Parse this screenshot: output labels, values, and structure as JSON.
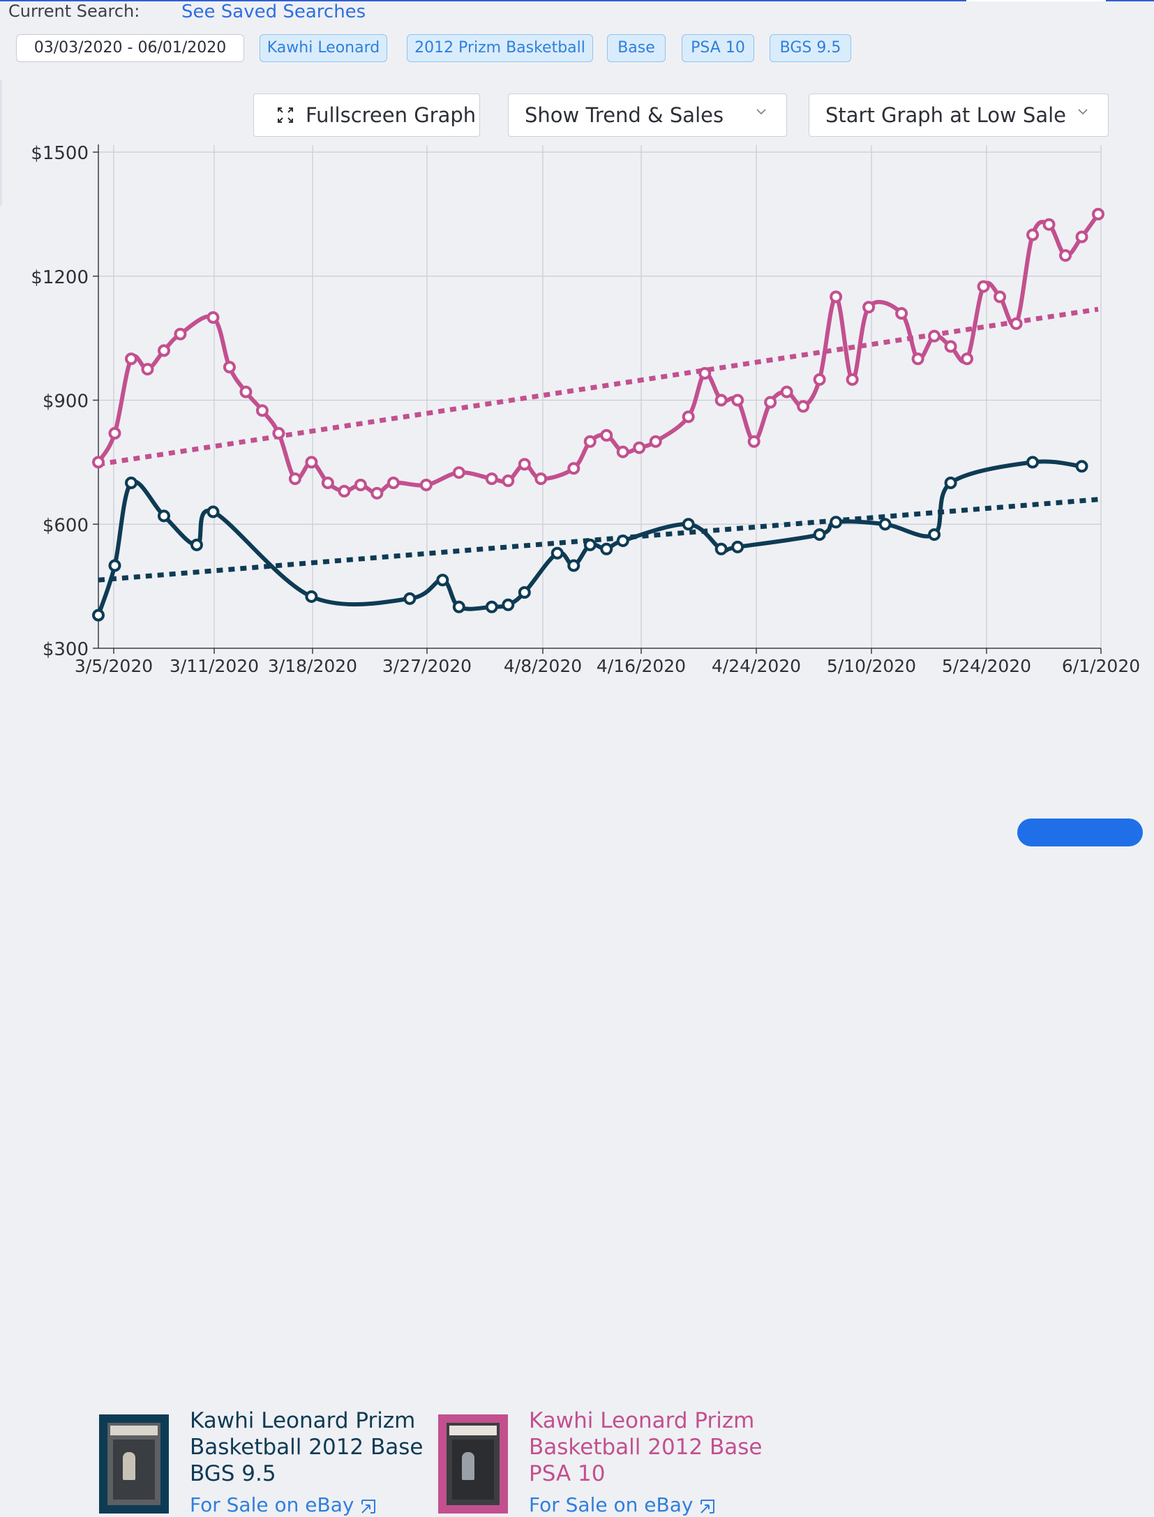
{
  "header": {
    "current_search_label": "Current Search:",
    "saved_searches_link": "See Saved Searches"
  },
  "chips": [
    {
      "label": "03/03/2020 - 06/01/2020",
      "kind": "date"
    },
    {
      "label": "Kawhi Leonard",
      "kind": "filter"
    },
    {
      "label": "2012 Prizm Basketball",
      "kind": "filter"
    },
    {
      "label": "Base",
      "kind": "filter"
    },
    {
      "label": "PSA 10",
      "kind": "filter"
    },
    {
      "label": "BGS 9.5",
      "kind": "filter"
    }
  ],
  "controls": {
    "fullscreen_label": "Fullscreen Graph",
    "trend_select_value": "Show Trend & Sales",
    "start_select_value": "Start Graph at Low Sale",
    "icons": [
      "fullscreen-icon",
      "chevron-down-icon",
      "chevron-down-icon"
    ]
  },
  "chart_data": {
    "type": "line",
    "title": "",
    "xlabel": "",
    "ylabel": "",
    "ylim": [
      300,
      1500
    ],
    "y_ticks": [
      300,
      600,
      900,
      1200,
      1500
    ],
    "y_tick_labels": [
      "$300",
      "$600",
      "$900",
      "$1200",
      "$1500"
    ],
    "x_range": [
      "2020-03-04",
      "2020-06-01"
    ],
    "x_ticks": [
      {
        "date": "2020-03-05",
        "label": "3/5/2020"
      },
      {
        "date": "2020-03-11",
        "label": "3/11/2020"
      },
      {
        "date": "2020-03-18",
        "label": "3/18/2020"
      },
      {
        "date": "2020-03-27",
        "label": "3/27/2020"
      },
      {
        "date": "2020-04-08",
        "label": "4/8/2020"
      },
      {
        "date": "2020-04-16",
        "label": "4/16/2020"
      },
      {
        "date": "2020-04-24",
        "label": "4/24/2020"
      },
      {
        "date": "2020-05-10",
        "label": "5/10/2020"
      },
      {
        "date": "2020-05-24",
        "label": "5/24/2020"
      },
      {
        "date": "2020-06-01",
        "label": "6/1/2020"
      }
    ],
    "grid": true,
    "legend_position": "bottom",
    "series": [
      {
        "name": "Kawhi Leonard Prizm Basketball 2012 Base PSA 10",
        "color": "#c2508f",
        "points": [
          [
            "2020-03-04",
            750
          ],
          [
            "2020-03-05",
            820
          ],
          [
            "2020-03-06",
            1000
          ],
          [
            "2020-03-07",
            975
          ],
          [
            "2020-03-08",
            1020
          ],
          [
            "2020-03-09",
            1060
          ],
          [
            "2020-03-11",
            1100
          ],
          [
            "2020-03-12",
            980
          ],
          [
            "2020-03-13",
            920
          ],
          [
            "2020-03-14",
            875
          ],
          [
            "2020-03-15",
            820
          ],
          [
            "2020-03-16",
            710
          ],
          [
            "2020-03-17",
            750
          ],
          [
            "2020-03-18",
            700
          ],
          [
            "2020-03-19",
            680
          ],
          [
            "2020-03-20",
            695
          ],
          [
            "2020-03-21",
            675
          ],
          [
            "2020-03-22",
            700
          ],
          [
            "2020-03-24",
            695
          ],
          [
            "2020-03-26",
            725
          ],
          [
            "2020-03-28",
            710
          ],
          [
            "2020-03-29",
            705
          ],
          [
            "2020-03-30",
            745
          ],
          [
            "2020-03-31",
            710
          ],
          [
            "2020-04-02",
            735
          ],
          [
            "2020-04-03",
            800
          ],
          [
            "2020-04-04",
            815
          ],
          [
            "2020-04-05",
            775
          ],
          [
            "2020-04-06",
            785
          ],
          [
            "2020-04-07",
            800
          ],
          [
            "2020-04-09",
            860
          ],
          [
            "2020-04-10",
            965
          ],
          [
            "2020-04-11",
            900
          ],
          [
            "2020-04-12",
            900
          ],
          [
            "2020-04-13",
            800
          ],
          [
            "2020-04-14",
            895
          ],
          [
            "2020-04-15",
            920
          ],
          [
            "2020-04-16",
            885
          ],
          [
            "2020-04-17",
            950
          ],
          [
            "2020-04-18",
            1150
          ],
          [
            "2020-04-19",
            950
          ],
          [
            "2020-04-20",
            1125
          ],
          [
            "2020-04-22",
            1110
          ],
          [
            "2020-04-23",
            1000
          ],
          [
            "2020-04-24",
            1055
          ],
          [
            "2020-04-25",
            1030
          ],
          [
            "2020-04-26",
            1000
          ],
          [
            "2020-04-27",
            1175
          ],
          [
            "2020-04-28",
            1150
          ],
          [
            "2020-04-29",
            1085
          ],
          [
            "2020-04-30",
            1300
          ],
          [
            "2020-05-01",
            1325
          ],
          [
            "2020-05-02",
            1250
          ],
          [
            "2020-05-03",
            1295
          ],
          [
            "2020-05-04",
            1350
          ]
        ],
        "trend": [
          [
            "2020-03-04",
            745
          ],
          [
            "2020-05-04",
            1120
          ]
        ]
      },
      {
        "name": "Kawhi Leonard Prizm Basketball 2012 Base BGS 9.5",
        "color": "#0e3b54",
        "points": [
          [
            "2020-03-04",
            380
          ],
          [
            "2020-03-05",
            500
          ],
          [
            "2020-03-06",
            700
          ],
          [
            "2020-03-08",
            620
          ],
          [
            "2020-03-10",
            550
          ],
          [
            "2020-03-11",
            630
          ],
          [
            "2020-03-17",
            425
          ],
          [
            "2020-03-23",
            420
          ],
          [
            "2020-03-25",
            465
          ],
          [
            "2020-03-26",
            400
          ],
          [
            "2020-03-28",
            400
          ],
          [
            "2020-03-29",
            405
          ],
          [
            "2020-03-30",
            435
          ],
          [
            "2020-04-01",
            530
          ],
          [
            "2020-04-02",
            500
          ],
          [
            "2020-04-03",
            550
          ],
          [
            "2020-04-04",
            540
          ],
          [
            "2020-04-05",
            560
          ],
          [
            "2020-04-09",
            600
          ],
          [
            "2020-04-11",
            540
          ],
          [
            "2020-04-12",
            545
          ],
          [
            "2020-04-17",
            575
          ],
          [
            "2020-04-18",
            605
          ],
          [
            "2020-04-21",
            600
          ],
          [
            "2020-04-24",
            575
          ],
          [
            "2020-04-25",
            700
          ],
          [
            "2020-04-30",
            750
          ],
          [
            "2020-05-03",
            740
          ]
        ],
        "trend": [
          [
            "2020-03-04",
            465
          ],
          [
            "2020-05-04",
            660
          ]
        ]
      }
    ]
  },
  "legend": [
    {
      "title_lines": [
        "Kawhi Leonard Prizm",
        "Basketball 2012 Base",
        "BGS 9.5"
      ],
      "color": "#0e3b54",
      "link": "For Sale on eBay",
      "icon": "external-link-icon"
    },
    {
      "title_lines": [
        "Kawhi Leonard Prizm",
        "Basketball 2012 Base",
        "PSA 10"
      ],
      "color": "#c2508f",
      "link": "For Sale on eBay",
      "icon": "external-link-icon"
    }
  ]
}
